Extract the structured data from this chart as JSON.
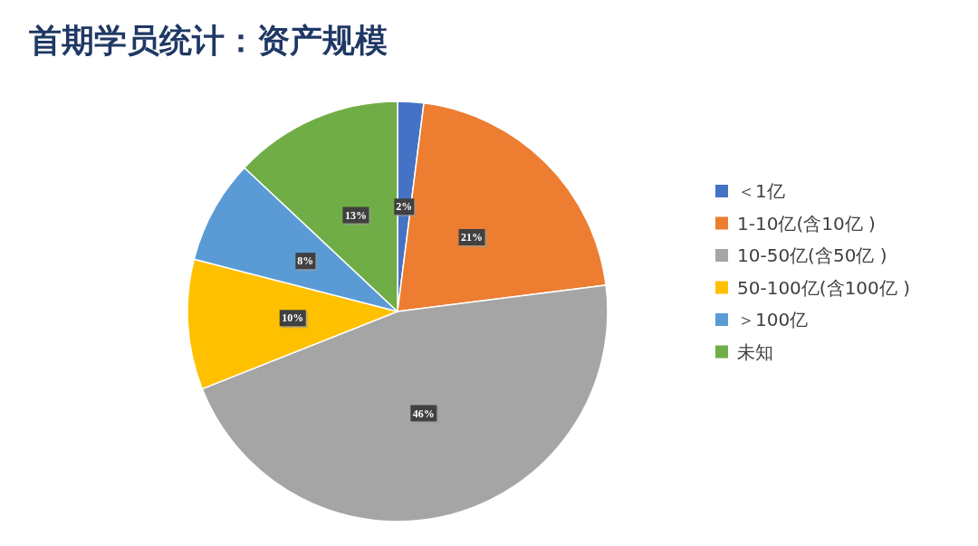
{
  "chart_data": {
    "type": "pie",
    "title": "首期学员统计：资产规模",
    "categories": [
      "＜1亿",
      "1-10亿(含10亿 )",
      "10-50亿(含50亿 )",
      "50-100亿(含100亿 )",
      "＞100亿",
      "未知"
    ],
    "values": [
      2,
      21,
      46,
      10,
      8,
      13
    ],
    "value_labels": [
      "2%",
      "21%",
      "46%",
      "10%",
      "8%",
      "13%"
    ],
    "colors": [
      "#4472c4",
      "#ed7d31",
      "#a5a5a5",
      "#ffc000",
      "#5b9bd5",
      "#70ad47"
    ],
    "legend": "right"
  }
}
